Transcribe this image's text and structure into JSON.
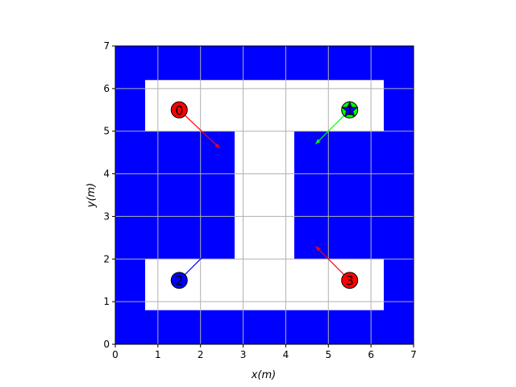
{
  "chart_data": {
    "type": "scatter",
    "title": "",
    "xlabel": "x(m)",
    "ylabel": "y(m)",
    "xlim": [
      0,
      7
    ],
    "ylim": [
      0,
      7
    ],
    "x_ticks": [
      "0",
      "1",
      "2",
      "3",
      "4",
      "5",
      "6",
      "7"
    ],
    "y_ticks": [
      "0",
      "1",
      "2",
      "3",
      "4",
      "5",
      "6",
      "7"
    ],
    "grid": true,
    "legend": "none",
    "obstacle_color": "#0000ff",
    "free_regions": [
      {
        "x": [
          0.7,
          6.3
        ],
        "y": [
          5.0,
          6.2
        ]
      },
      {
        "x": [
          2.8,
          4.2
        ],
        "y": [
          2.0,
          5.0
        ]
      },
      {
        "x": [
          0.7,
          6.3
        ],
        "y": [
          0.8,
          2.0
        ]
      }
    ],
    "agents": [
      {
        "label": "0",
        "x": 1.5,
        "y": 5.5,
        "color": "#ff0000",
        "arrow_to": [
          2.45,
          4.6
        ],
        "marker": "circle"
      },
      {
        "label": "1",
        "x": 5.5,
        "y": 5.5,
        "color": "#00ff00",
        "arrow_to": [
          4.7,
          4.7
        ],
        "marker": "star"
      },
      {
        "label": "2",
        "x": 1.5,
        "y": 1.5,
        "color": "#0000ff",
        "arrow_to": [
          2.3,
          2.3
        ],
        "marker": "circle"
      },
      {
        "label": "3",
        "x": 5.5,
        "y": 1.5,
        "color": "#ff0000",
        "arrow_to": [
          4.7,
          2.3
        ],
        "marker": "circle"
      }
    ]
  }
}
